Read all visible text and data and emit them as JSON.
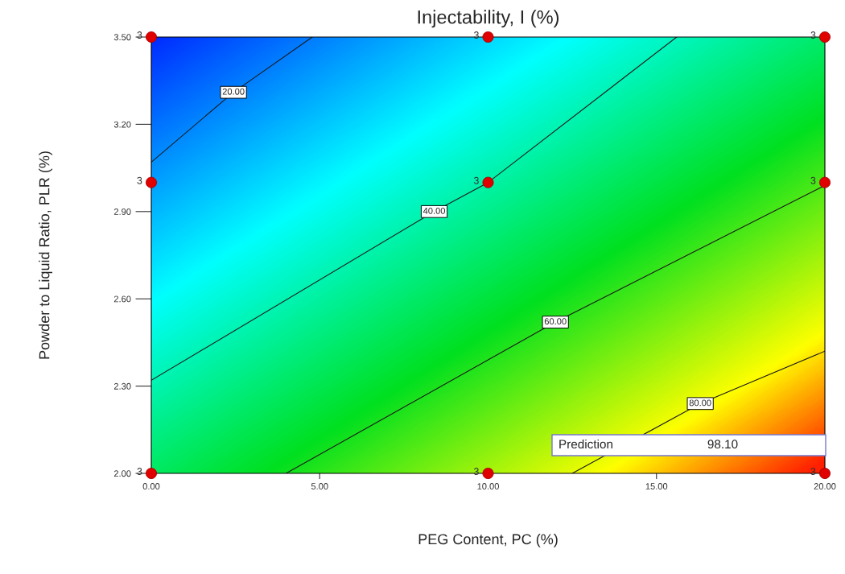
{
  "chart_data": {
    "type": "line",
    "title": "Injectability, I (%)",
    "xlabel": "PEG Content, PC (%)",
    "ylabel": "Powder to Liquid Ratio, PLR (%)",
    "xlim": [
      0,
      20
    ],
    "ylim": [
      2.0,
      3.5
    ],
    "xticks": [
      {
        "value": 0,
        "label": "0.00"
      },
      {
        "value": 5,
        "label": "5.00"
      },
      {
        "value": 10,
        "label": "10.00"
      },
      {
        "value": 15,
        "label": "15.00"
      },
      {
        "value": 20,
        "label": "20.00"
      }
    ],
    "yticks": [
      {
        "value": 2.0,
        "label": "2.00"
      },
      {
        "value": 2.3,
        "label": "2.30"
      },
      {
        "value": 2.6,
        "label": "2.60"
      },
      {
        "value": 2.9,
        "label": "2.90"
      },
      {
        "value": 3.2,
        "label": "3.20"
      },
      {
        "value": 3.5,
        "label": "3.50"
      }
    ],
    "grid": false,
    "legend": false,
    "series": [
      {
        "name": "20.00",
        "color": "#1a1a1a",
        "x": [
          0,
          2.44,
          4.78
        ],
        "values": [
          3.07,
          3.31,
          3.5
        ]
      },
      {
        "name": "40.00",
        "color": "#1a1a1a",
        "x": [
          0,
          8.4,
          10,
          15.6
        ],
        "values": [
          2.32,
          2.9,
          3.0,
          3.5
        ]
      },
      {
        "name": "60.00",
        "color": "#1a1a1a",
        "x": [
          4.0,
          12.0,
          20
        ],
        "values": [
          2.0,
          2.52,
          2.99
        ]
      },
      {
        "name": "80.00",
        "color": "#1a1a1a",
        "x": [
          12.5,
          16.3,
          20
        ],
        "values": [
          2.0,
          2.24,
          2.42
        ]
      },
      {
        "type": "scatter",
        "color": "#e00000",
        "marker": "circle",
        "x": [
          0,
          10,
          20,
          0,
          10,
          20,
          0,
          10,
          20
        ],
        "values": [
          2.0,
          2.0,
          2.0,
          3.0,
          3.0,
          3.0,
          3.5,
          3.5,
          3.5
        ]
      }
    ],
    "annotations": [
      "Prediction",
      "98.10",
      {
        "text": "3",
        "x": 0,
        "y": 2.0
      },
      {
        "text": "3",
        "x": 10,
        "y": 2.0
      },
      {
        "text": "3",
        "x": 20,
        "y": 2.0
      },
      {
        "text": "3",
        "x": 0,
        "y": 3.0
      },
      {
        "text": "3",
        "x": 10,
        "y": 3.0
      },
      {
        "text": "3",
        "x": 20,
        "y": 3.0
      },
      {
        "text": "3",
        "x": 0,
        "y": 3.5
      },
      {
        "text": "3",
        "x": 10,
        "y": 3.5
      },
      {
        "text": "3",
        "x": 20,
        "y": 3.5
      }
    ]
  }
}
